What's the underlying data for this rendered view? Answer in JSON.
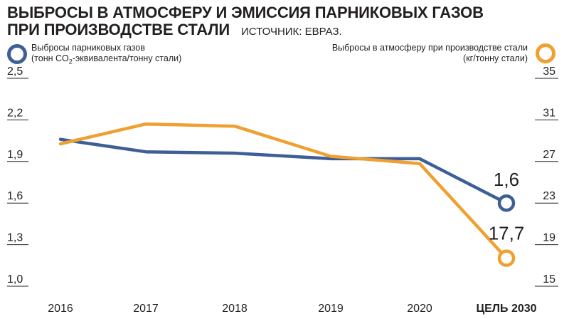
{
  "chart_data": {
    "type": "line",
    "title_line1": "ВЫБРОСЫ В АТМОСФЕРУ И ЭМИССИЯ ПАРНИКОВЫХ ГАЗОВ",
    "title_line2": "ПРИ ПРОИЗВОДСТВЕ СТАЛИ",
    "source": "ИСТОЧНИК: ЕВРАЗ.",
    "categories": [
      "2016",
      "2017",
      "2018",
      "2019",
      "2020",
      "ЦЕЛЬ 2030"
    ],
    "left_axis": {
      "ticks": [
        "2,5",
        "2,2",
        "1,9",
        "1,6",
        "1,3",
        "1,0"
      ],
      "tick_values": [
        2.5,
        2.2,
        1.9,
        1.6,
        1.3,
        1.0
      ],
      "ylim": [
        1.0,
        2.5
      ]
    },
    "right_axis": {
      "ticks": [
        "35",
        "31",
        "27",
        "23",
        "19",
        "15"
      ],
      "tick_values": [
        35,
        31,
        27,
        23,
        19,
        15
      ],
      "ylim": [
        15,
        35
      ]
    },
    "series": [
      {
        "name_line1": "Выбросы парниковых газов",
        "name_line2_pre": "(тонн CO",
        "name_line2_sub": "2",
        "name_line2_post": "-эквивалента/тонну стали)",
        "axis": "left",
        "color": "#3d5f95",
        "values": [
          2.06,
          1.97,
          1.96,
          1.92,
          1.92,
          1.6
        ],
        "end_label": "1,6"
      },
      {
        "name_line1": "Выбросы в атмосферу при производстве стали",
        "name_line2": "(кг/тонну стали)",
        "axis": "right",
        "color": "#f0a030",
        "values": [
          28.7,
          30.6,
          30.4,
          27.5,
          26.8,
          17.7
        ],
        "end_label": "17,7"
      }
    ]
  }
}
